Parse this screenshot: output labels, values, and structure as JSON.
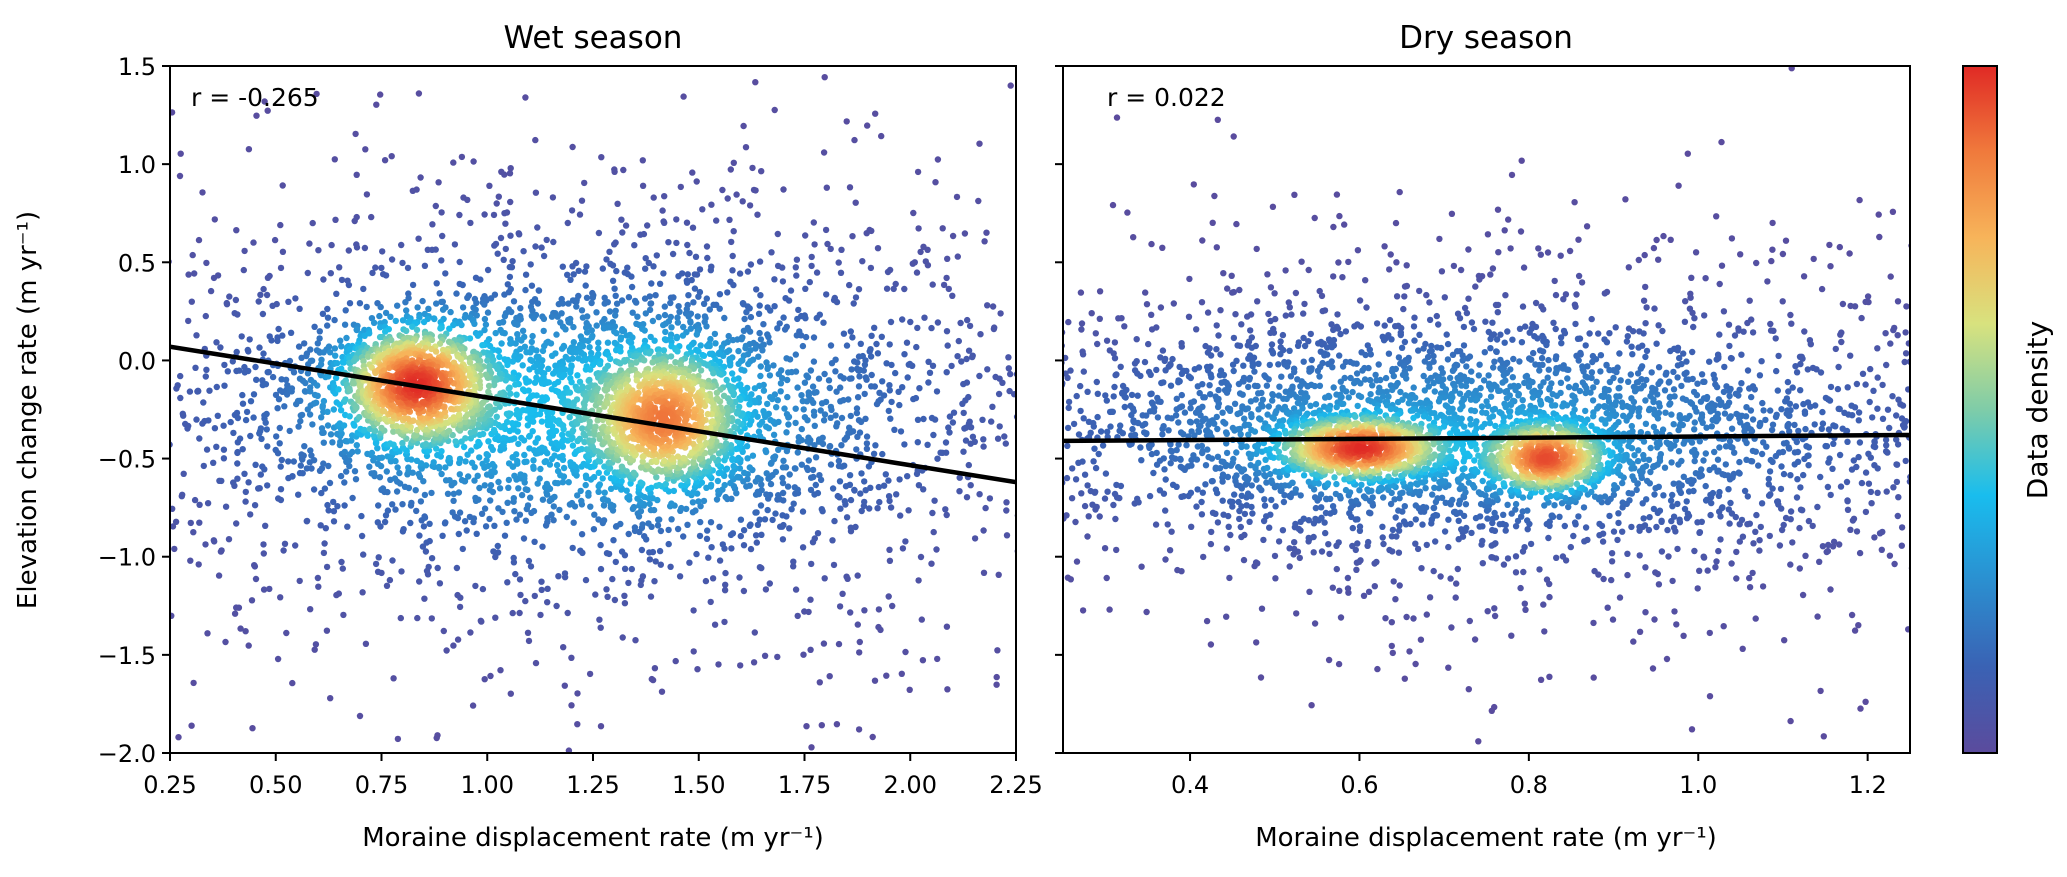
{
  "chart_data": [
    {
      "type": "scatter",
      "title": "Wet season",
      "xlabel": "Moraine displacement rate (m yr⁻¹)",
      "ylabel": "Elevation change rate (m yr⁻¹)",
      "xlim": [
        0.25,
        2.25
      ],
      "ylim": [
        -2.0,
        1.5
      ],
      "xticks": [
        "0.25",
        "0.50",
        "0.75",
        "1.00",
        "1.25",
        "1.50",
        "1.75",
        "2.00",
        "2.25"
      ],
      "yticks": [
        "−2.0",
        "−1.5",
        "−1.0",
        "−0.5",
        "0.0",
        "0.5",
        "1.0",
        "1.5"
      ],
      "annotation": "r = -0.265",
      "regression_line": {
        "x": [
          0.25,
          2.25
        ],
        "y": [
          0.07,
          -0.62
        ]
      },
      "density_peaks": [
        {
          "x": 0.83,
          "y": -0.12
        },
        {
          "x": 1.42,
          "y": -0.3
        }
      ],
      "grid": false
    },
    {
      "type": "scatter",
      "title": "Dry season",
      "xlabel": "Moraine displacement rate (m yr⁻¹)",
      "ylabel": "",
      "xlim": [
        0.25,
        1.25
      ],
      "ylim": [
        -2.0,
        1.5
      ],
      "xticks": [
        "0.4",
        "0.6",
        "0.8",
        "1.0",
        "1.2"
      ],
      "annotation": "r = 0.022",
      "regression_line": {
        "x": [
          0.25,
          1.25
        ],
        "y": [
          -0.41,
          -0.38
        ]
      },
      "density_peaks": [
        {
          "x": 0.6,
          "y": -0.45
        },
        {
          "x": 0.82,
          "y": -0.5
        }
      ],
      "grid": false
    }
  ],
  "colorbar": {
    "label": "Data density",
    "colors": [
      "#5b4b9d",
      "#3a62b4",
      "#2b8fd0",
      "#19bdee",
      "#7fcca8",
      "#d8e27e",
      "#f7b45a",
      "#f07a3c",
      "#e02a25"
    ]
  },
  "regression_color": "#000000"
}
